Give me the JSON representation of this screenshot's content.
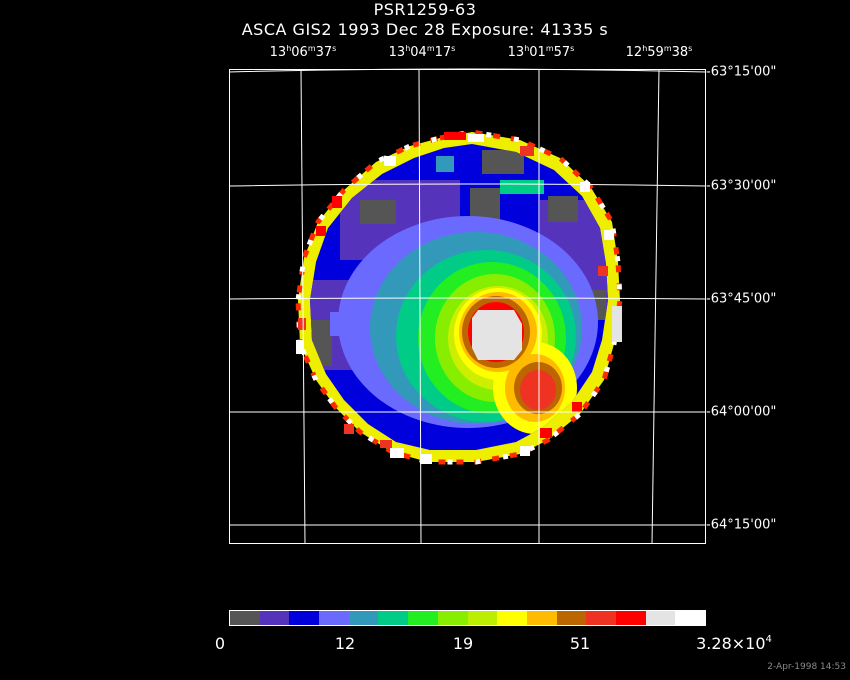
{
  "title": {
    "line1": "PSR1259-63",
    "line2": "ASCA GIS2    1993 Dec 28    Exposure: 41335 s"
  },
  "ra_labels": [
    {
      "h": "13",
      "m": "06",
      "s": "37"
    },
    {
      "h": "13",
      "m": "04",
      "s": "17"
    },
    {
      "h": "13",
      "m": "01",
      "s": "57"
    },
    {
      "h": "12",
      "m": "59",
      "s": "38"
    }
  ],
  "dec_labels": [
    "-63°15'00\"",
    "-63°30'00\"",
    "-63°45'00\"",
    "-64°00'00\"",
    "-64°15'00\""
  ],
  "colorbar": {
    "colors": [
      "#555555",
      "#5533bb",
      "#0000dd",
      "#6a6aff",
      "#3399bb",
      "#00cc88",
      "#22ee22",
      "#88ee00",
      "#bbee00",
      "#ffff00",
      "#ffbb00",
      "#bb6600",
      "#ee3322",
      "#ff0000",
      "#e4e4e4",
      "#ffffff"
    ],
    "labels": [
      "0",
      "12",
      "19",
      "51"
    ],
    "max_label_base": "3.28×10",
    "max_label_exp": "4"
  },
  "timestamp": "2-Apr-1998 14:53"
}
